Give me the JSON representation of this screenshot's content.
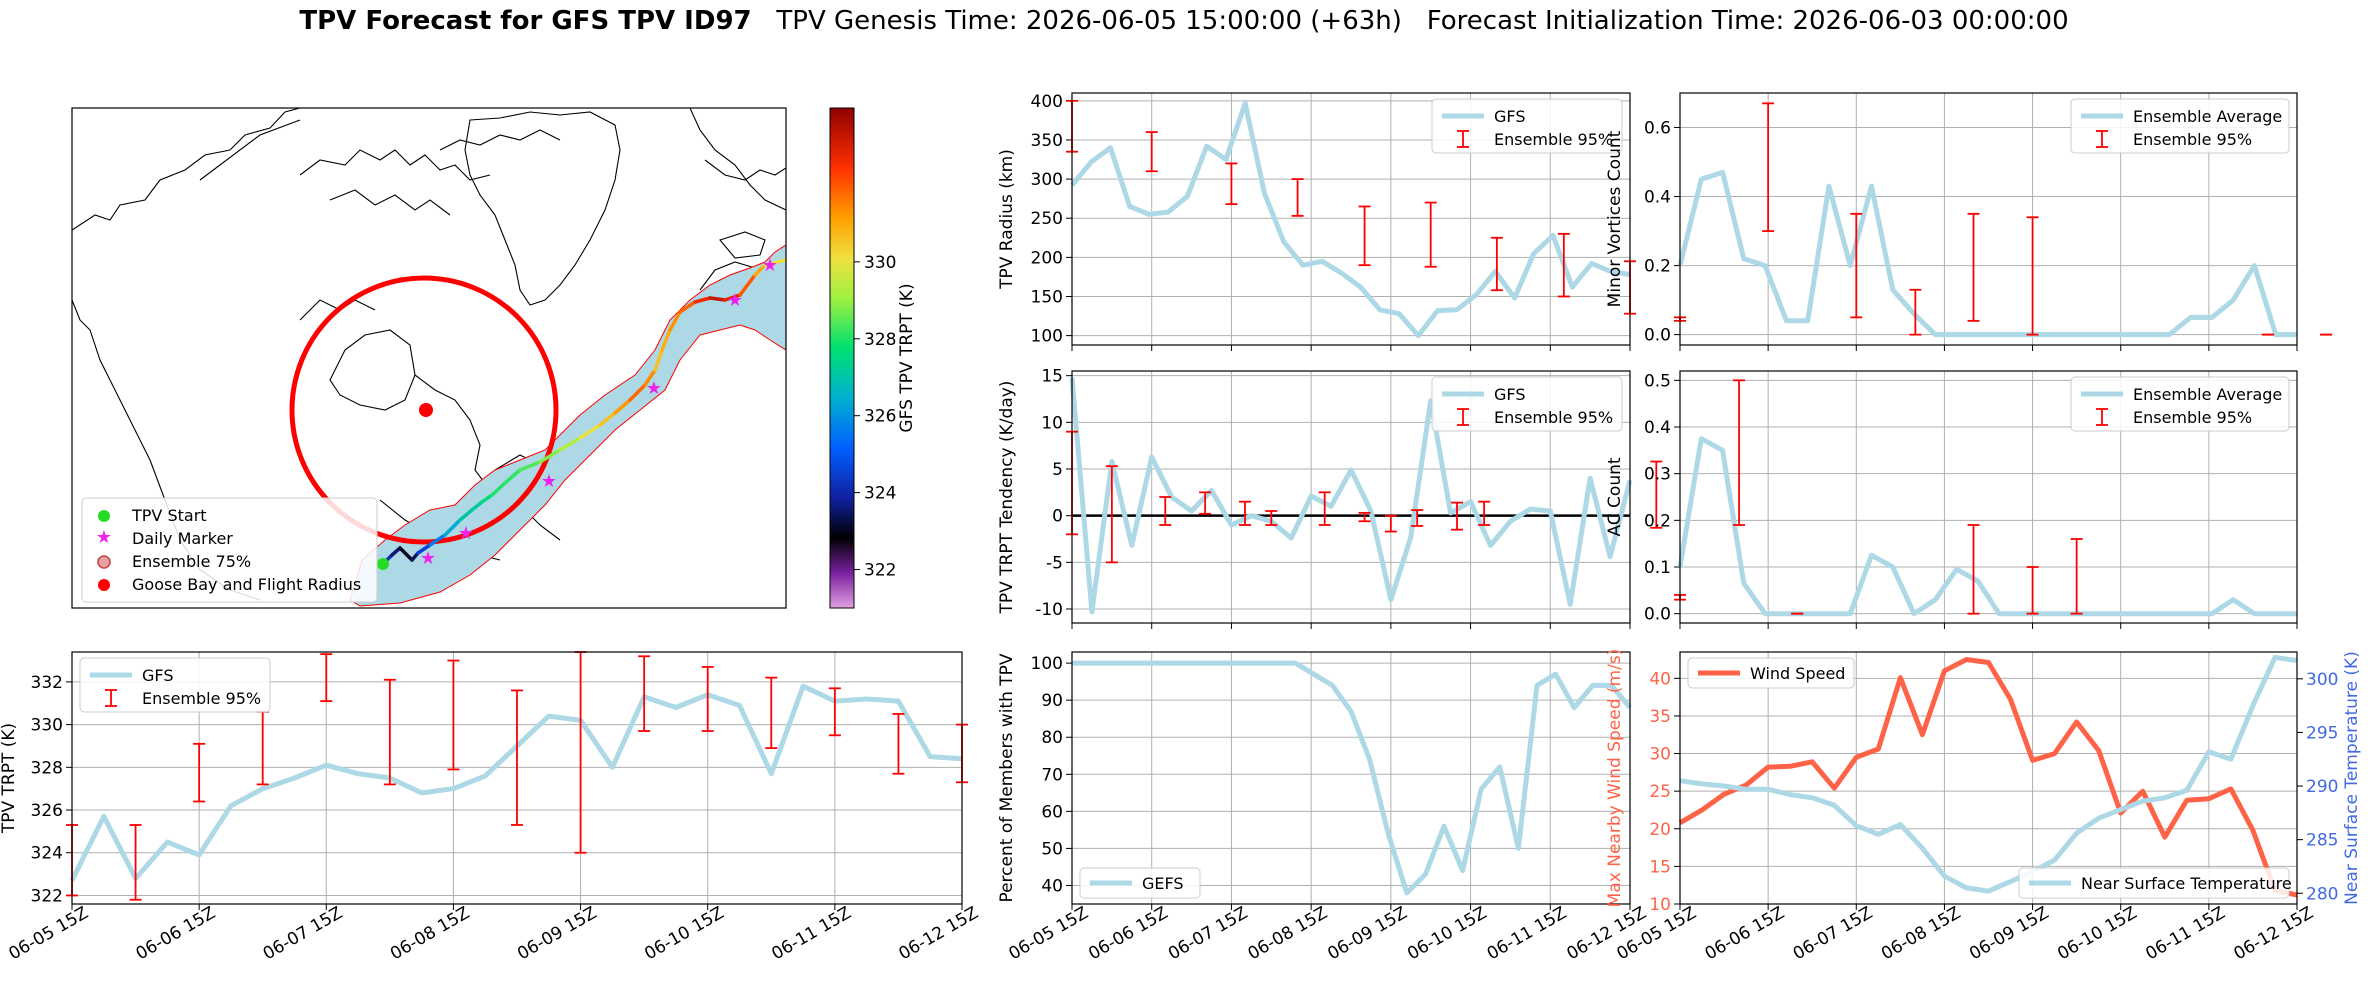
{
  "figure": {
    "title_bold": "TPV Forecast for GFS TPV ID97",
    "title_genesis": "TPV Genesis Time: 2026-06-05 15:00:00 (+63h)",
    "title_init": "Forecast Initialization Time: 2026-06-03 00:00:00"
  },
  "colors": {
    "gfs_line": "#add8e6",
    "errorbar": "#ff0000",
    "wind": "#ff6347",
    "temp_axis": "#4169e1",
    "map_fill": "#add8e6",
    "goose_circle": "#ff0000"
  },
  "time_ticks": [
    "06-05 15Z",
    "06-06 15Z",
    "06-07 15Z",
    "06-08 15Z",
    "06-09 15Z",
    "06-10 15Z",
    "06-11 15Z",
    "06-12 15Z"
  ],
  "map": {
    "colorbar_label": "GFS TPV TRPT (K)",
    "colorbar_ticks": [
      "322",
      "324",
      "326",
      "328",
      "330"
    ],
    "colorbar_range": [
      321,
      334
    ],
    "legend": [
      "TPV Start",
      "Daily Marker",
      "Ensemble 75%",
      "Goose Bay and Flight Radius"
    ],
    "track_trpt": [
      324.2,
      323.6,
      323.0,
      323.4,
      324.5,
      325.6,
      326.4,
      327.0,
      327.2,
      327.6,
      328.0,
      328.1,
      328.4,
      328.8,
      329.3,
      330.0,
      330.6,
      331.2,
      331.8,
      331.4,
      330.6,
      330.9,
      331.3,
      331.8,
      332.6,
      333.2,
      332.8,
      332.0,
      331.0,
      330.0,
      329.6
    ]
  },
  "chart_data": [
    {
      "type": "line",
      "id": "radius",
      "ylabel": "TPV Radius (km)",
      "ylim": [
        88,
        410
      ],
      "yticks": [
        100,
        150,
        200,
        250,
        300,
        350,
        400
      ],
      "legend": [
        "GFS",
        "Ensemble 95%"
      ],
      "legend_pos": "top-right",
      "series": [
        {
          "name": "GFS",
          "values": [
            292,
            322,
            340,
            265,
            255,
            258,
            278,
            342,
            325,
            397,
            282,
            220,
            190,
            195,
            180,
            162,
            133,
            128,
            100,
            132,
            133,
            152,
            182,
            148,
            205,
            228,
            162,
            192,
            182,
            178
          ]
        }
      ],
      "errorbars": [
        [
          0.0,
          335,
          400
        ],
        [
          1.0,
          310,
          360
        ],
        [
          2.0,
          268,
          320
        ],
        [
          2.83,
          253,
          300
        ],
        [
          3.67,
          190,
          265
        ],
        [
          4.5,
          188,
          270
        ],
        [
          5.33,
          158,
          225
        ],
        [
          6.17,
          150,
          230
        ],
        [
          7.0,
          128,
          195
        ],
        [
          7.83,
          110,
          180
        ],
        [
          8.67,
          110,
          178
        ],
        [
          9.5,
          150,
          198
        ],
        [
          10.33,
          185,
          272
        ],
        [
          11.17,
          210,
          278
        ],
        [
          12.0,
          262,
          325
        ]
      ]
    },
    {
      "type": "line",
      "id": "tendency",
      "ylabel": "TPV TRPT Tendency (K/day)",
      "ylim": [
        -11.5,
        15.5
      ],
      "yticks": [
        -10,
        -5,
        0,
        5,
        10,
        15
      ],
      "legend": [
        "GFS",
        "Ensemble 95%"
      ],
      "legend_pos": "top-right",
      "zero_line": true,
      "series": [
        {
          "name": "GFS",
          "values": [
            14.8,
            -10.3,
            5.8,
            -3.2,
            6.3,
            2.0,
            0.5,
            2.7,
            -1.0,
            0.0,
            -0.6,
            -2.4,
            2.1,
            1.0,
            4.9,
            0.5,
            -9.0,
            -2.3,
            12.3,
            0.3,
            1.5,
            -3.2,
            -0.6,
            0.7,
            0.5,
            -9.5,
            4.0,
            -4.4,
            3.8
          ]
        }
      ],
      "errorbars": [
        [
          0.0,
          -2,
          9
        ],
        [
          0.5,
          -5,
          5.3
        ],
        [
          1.17,
          -1,
          2
        ],
        [
          1.67,
          0.2,
          2.5
        ],
        [
          2.17,
          -1,
          1.5
        ],
        [
          2.5,
          -1,
          0.5
        ],
        [
          3.17,
          -1,
          2.5
        ],
        [
          3.67,
          -0.6,
          0.3
        ],
        [
          4.0,
          -1.7,
          0
        ],
        [
          4.33,
          -1.1,
          0.6
        ],
        [
          4.83,
          -1.5,
          1.4
        ],
        [
          5.17,
          -1,
          1.5
        ],
        [
          7.33,
          -1.3,
          5.8
        ],
        [
          8.67,
          -1,
          1.2
        ],
        [
          9.5,
          0,
          1
        ],
        [
          10.0,
          -6.5,
          -1
        ],
        [
          10.33,
          -0.9,
          2.3
        ],
        [
          10.67,
          -1.3,
          0.5
        ],
        [
          11.0,
          -1,
          1.7
        ]
      ]
    },
    {
      "type": "line",
      "id": "minor",
      "ylabel": "Minor Vortices Count",
      "ylim": [
        -0.03,
        0.7
      ],
      "yticks": [
        "0.0",
        "0.2",
        "0.4",
        "0.6"
      ],
      "legend": [
        "Ensemble Average",
        "Ensemble 95%"
      ],
      "legend_pos": "top-right",
      "series": [
        {
          "name": "Ensemble Average",
          "values": [
            0.2,
            0.45,
            0.47,
            0.22,
            0.2,
            0.04,
            0.04,
            0.43,
            0.2,
            0.43,
            0.13,
            0.06,
            0.0,
            0.0,
            0.0,
            0.0,
            0.0,
            0.0,
            0.0,
            0.0,
            0.0,
            0.0,
            0.0,
            0.0,
            0.05,
            0.05,
            0.1,
            0.2,
            0.0,
            0.0
          ]
        }
      ],
      "errorbars": [
        [
          0.0,
          0.04,
          0.05
        ],
        [
          1.0,
          0.3,
          0.67
        ],
        [
          2.0,
          0.05,
          0.35
        ],
        [
          2.67,
          0.0,
          0.13
        ],
        [
          3.33,
          0.04,
          0.35
        ],
        [
          4.0,
          0.0,
          0.34
        ],
        [
          6.67,
          0.0,
          0.0
        ],
        [
          7.33,
          0.0,
          0.0
        ],
        [
          10.0,
          0.0,
          0.13
        ],
        [
          10.67,
          0.0,
          0.42
        ]
      ]
    },
    {
      "type": "line",
      "id": "ac",
      "ylabel": "AC Count",
      "ylim": [
        -0.02,
        0.52
      ],
      "yticks": [
        "0.0",
        "0.1",
        "0.2",
        "0.3",
        "0.4",
        "0.5"
      ],
      "legend": [
        "Ensemble Average",
        "Ensemble 95%"
      ],
      "legend_pos": "top-right",
      "series": [
        {
          "name": "Ensemble Average",
          "values": [
            0.1,
            0.375,
            0.35,
            0.065,
            0.0,
            0.0,
            0.0,
            0.0,
            0.0,
            0.125,
            0.1,
            0.0,
            0.03,
            0.095,
            0.07,
            0.0,
            0.0,
            0.0,
            0.0,
            0.0,
            0.0,
            0.0,
            0.0,
            0.0,
            0.0,
            0.0,
            0.03,
            0.0,
            0.0,
            0.0
          ]
        }
      ],
      "errorbars": [
        [
          0.0,
          0.03,
          0.04
        ],
        [
          0.67,
          0.19,
          0.5
        ],
        [
          1.33,
          0.0,
          0.0
        ],
        [
          3.33,
          0.0,
          0.19
        ],
        [
          4.0,
          0.0,
          0.1
        ],
        [
          4.5,
          0.0,
          0.16
        ],
        [
          8.67,
          0.0,
          0.0
        ],
        [
          10.67,
          0.0,
          0.13
        ]
      ]
    },
    {
      "type": "line",
      "id": "trpt",
      "ylabel": "TPV TRPT (K)",
      "ylim": [
        321.6,
        333.4
      ],
      "yticks": [
        322,
        324,
        326,
        328,
        330,
        332
      ],
      "legend": [
        "GFS",
        "Ensemble 95%"
      ],
      "legend_pos": "top-left",
      "series": [
        {
          "name": "GFS",
          "values": [
            322.7,
            325.7,
            322.8,
            324.5,
            323.9,
            326.2,
            327.0,
            327.5,
            328.1,
            327.7,
            327.5,
            326.8,
            327.0,
            327.6,
            329.0,
            330.4,
            330.2,
            328.0,
            331.3,
            330.8,
            331.4,
            330.9,
            327.7,
            331.8,
            331.1,
            331.2,
            331.1,
            328.5,
            328.4
          ]
        }
      ],
      "errorbars": [
        [
          0.0,
          322.0,
          325.3
        ],
        [
          0.5,
          321.8,
          325.3
        ],
        [
          1.0,
          326.4,
          329.1
        ],
        [
          1.5,
          327.2,
          330.6
        ],
        [
          2.0,
          331.1,
          333.3
        ],
        [
          2.5,
          327.2,
          332.1
        ],
        [
          3.0,
          327.9,
          333.0
        ],
        [
          3.5,
          325.3,
          331.6
        ],
        [
          4.0,
          324.0,
          333.4
        ],
        [
          4.5,
          329.7,
          333.2
        ],
        [
          5.0,
          329.7,
          332.7
        ],
        [
          5.5,
          328.9,
          332.2
        ],
        [
          6.0,
          329.5,
          331.7
        ],
        [
          6.5,
          327.7,
          330.5
        ],
        [
          7.0,
          327.3,
          330.0
        ]
      ]
    },
    {
      "type": "line",
      "id": "members",
      "ylabel": "Percent of Members with TPV",
      "ylim": [
        35,
        103
      ],
      "yticks": [
        40,
        50,
        60,
        70,
        80,
        90,
        100
      ],
      "legend": [
        "GEFS"
      ],
      "legend_pos": "bottom-left",
      "series": [
        {
          "name": "GEFS",
          "values": [
            100,
            100,
            100,
            100,
            100,
            100,
            100,
            100,
            100,
            100,
            100,
            100,
            100,
            97,
            94,
            87,
            74,
            54,
            38,
            43,
            56,
            44,
            66,
            72,
            50,
            94,
            97,
            88,
            94,
            94,
            88
          ]
        }
      ]
    },
    {
      "type": "line",
      "id": "wind_temp",
      "ylabel": "Max Nearby Wind Speed (m/s)",
      "ylim": [
        10,
        43.5
      ],
      "yticks": [
        10,
        15,
        20,
        25,
        30,
        35,
        40
      ],
      "ylabel_right": "Near Surface Temperature (K)",
      "ylim_right": [
        279,
        302.5
      ],
      "yticks_right": [
        280,
        285,
        290,
        295,
        300
      ],
      "legend": [
        "Wind Speed",
        "Near Surface Temperature"
      ],
      "legend_pos": "top-left / bottom-right",
      "series": [
        {
          "name": "Wind Speed",
          "values": [
            20.8,
            22.5,
            24.6,
            25.8,
            28.2,
            28.3,
            28.9,
            25.4,
            29.5,
            30.6,
            40.1,
            32.5,
            41.0,
            42.5,
            42.1,
            37.2,
            29.1,
            30.0,
            34.2,
            30.4,
            22.1,
            25.0,
            18.9,
            23.8,
            24.0,
            25.3,
            19.8,
            11.8,
            11.2
          ]
        },
        {
          "name": "Near Surface Temperature",
          "axis": "right",
          "values": [
            290.5,
            290.2,
            290.0,
            289.7,
            289.7,
            289.2,
            288.9,
            288.2,
            286.3,
            285.5,
            286.4,
            284.2,
            281.6,
            280.5,
            280.2,
            281.1,
            282.0,
            283.1,
            285.6,
            287.0,
            287.8,
            288.6,
            288.9,
            289.6,
            293.2,
            292.5,
            297.5,
            302.0,
            301.7
          ]
        }
      ]
    }
  ]
}
